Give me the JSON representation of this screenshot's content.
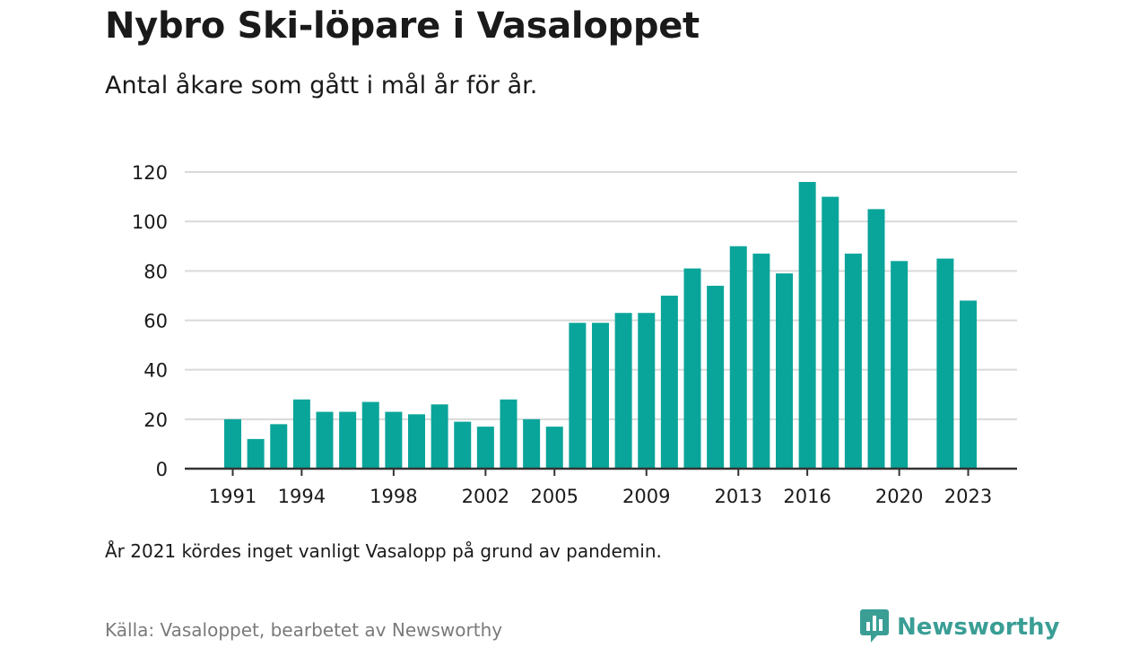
{
  "header": {
    "title": "Nybro Ski-löpare i Vasaloppet",
    "subtitle": "Antal åkare som gått i mål år för år."
  },
  "footer": {
    "note": "År 2021 kördes inget vanligt Vasalopp på grund av pandemin.",
    "source": "Källa: Vasaloppet, bearbetet av Newsworthy",
    "brand": "Newsworthy",
    "brand_icon": "newsworthy-logo-icon"
  },
  "colors": {
    "bar": "#0aa59a",
    "grid": "#d9d9d9",
    "baseline": "#333333",
    "brand": "#3a9e95"
  },
  "chart_data": {
    "type": "bar",
    "title": "Nybro Ski-löpare i Vasaloppet",
    "subtitle": "Antal åkare som gått i mål år för år.",
    "xlabel": "",
    "ylabel": "",
    "ylim": [
      0,
      120
    ],
    "yticks": [
      0,
      20,
      40,
      60,
      80,
      100,
      120
    ],
    "xticks": [
      1991,
      1994,
      1998,
      2002,
      2005,
      2009,
      2013,
      2016,
      2020,
      2023
    ],
    "grid": true,
    "categories": [
      1991,
      1992,
      1993,
      1994,
      1995,
      1996,
      1997,
      1998,
      1999,
      2000,
      2001,
      2002,
      2003,
      2004,
      2005,
      2006,
      2007,
      2008,
      2009,
      2010,
      2011,
      2012,
      2013,
      2014,
      2015,
      2016,
      2017,
      2018,
      2019,
      2020,
      2021,
      2022,
      2023
    ],
    "values": [
      20,
      12,
      18,
      28,
      23,
      23,
      27,
      23,
      22,
      26,
      19,
      17,
      28,
      20,
      17,
      59,
      59,
      63,
      63,
      70,
      81,
      74,
      90,
      87,
      79,
      116,
      110,
      87,
      105,
      84,
      null,
      85,
      68
    ]
  }
}
